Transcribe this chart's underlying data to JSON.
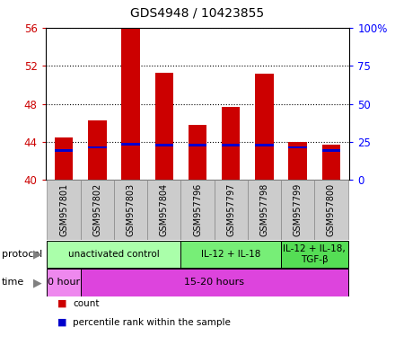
{
  "title": "GDS4948 / 10423855",
  "samples": [
    "GSM957801",
    "GSM957802",
    "GSM957803",
    "GSM957804",
    "GSM957796",
    "GSM957797",
    "GSM957798",
    "GSM957799",
    "GSM957800"
  ],
  "bar_tops": [
    44.5,
    46.3,
    56.0,
    51.3,
    45.8,
    47.7,
    51.2,
    44.0,
    43.7
  ],
  "bar_bottoms": [
    40.0,
    40.0,
    40.0,
    40.0,
    40.0,
    40.0,
    40.0,
    40.0,
    40.0
  ],
  "blue_positions": [
    42.95,
    43.3,
    43.6,
    43.5,
    43.5,
    43.55,
    43.5,
    43.3,
    42.95
  ],
  "bar_color": "#cc0000",
  "blue_color": "#0000cc",
  "ylim_left": [
    40,
    56
  ],
  "ylim_right": [
    0,
    100
  ],
  "yticks_left": [
    40,
    44,
    48,
    52,
    56
  ],
  "yticks_right": [
    0,
    25,
    50,
    75,
    100
  ],
  "ytick_labels_left": [
    "40",
    "44",
    "48",
    "52",
    "56"
  ],
  "ytick_labels_right": [
    "0",
    "25",
    "50",
    "75",
    "100%"
  ],
  "bar_width": 0.55,
  "protocol_groups": [
    {
      "label": "unactivated control",
      "start": 0,
      "end": 3,
      "color": "#aaffaa"
    },
    {
      "label": "IL-12 + IL-18",
      "start": 4,
      "end": 6,
      "color": "#77ee77"
    },
    {
      "label": "IL-12 + IL-18,\nTGF-β",
      "start": 7,
      "end": 8,
      "color": "#55dd55"
    }
  ],
  "time_groups": [
    {
      "label": "0 hour",
      "start": 0,
      "end": 0,
      "color": "#ee88ee"
    },
    {
      "label": "15-20 hours",
      "start": 1,
      "end": 8,
      "color": "#dd44dd"
    }
  ],
  "legend_items": [
    {
      "color": "#cc0000",
      "label": "count"
    },
    {
      "color": "#0000cc",
      "label": "percentile rank within the sample"
    }
  ],
  "grid_style": "dotted",
  "background_color": "#ffffff",
  "plot_bg": "#ffffff",
  "left_tick_color": "#cc0000",
  "right_tick_color": "#0000ff",
  "sample_box_color": "#cccccc",
  "sample_box_edge": "#888888"
}
